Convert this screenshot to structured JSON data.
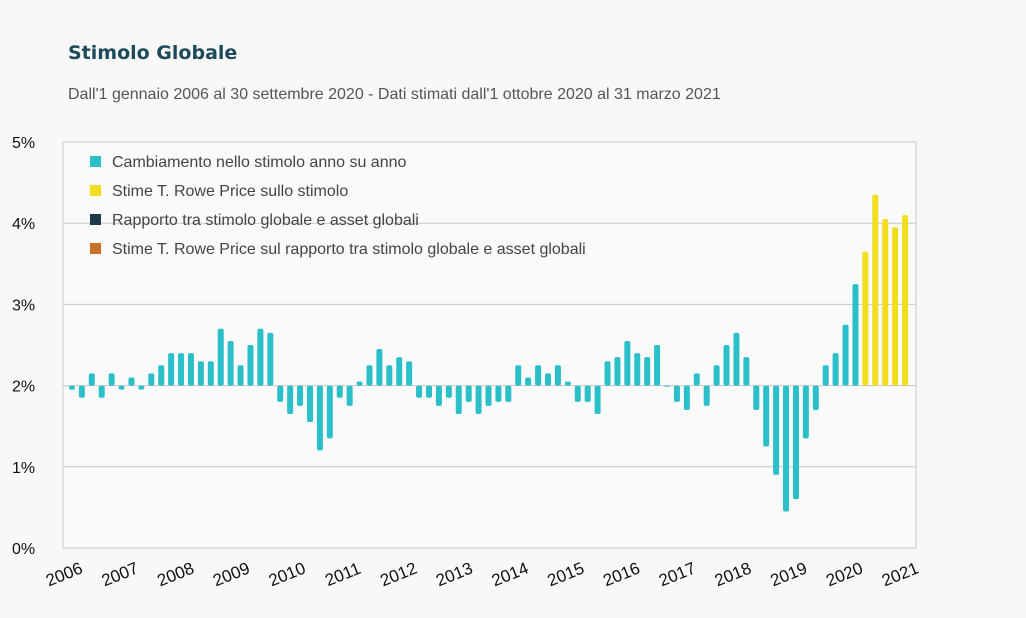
{
  "header": {
    "title": "Stimolo Globale",
    "subtitle": "Dall'1 gennaio 2006 al 30 settembre 2020 - Dati stimati dall'1 ottobre 2020 al 31 marzo 2021"
  },
  "colors": {
    "actual": "#2bbfc9",
    "estimate": "#f2de1f",
    "ratio": "#1c3a4a",
    "ratio_estimate": "#c8702a",
    "grid": "#c8c8c8"
  },
  "chart_data": {
    "type": "bar",
    "title": "Stimolo Globale",
    "xlabel": "",
    "ylabel": "",
    "ylim": [
      0,
      5
    ],
    "y_ticks": [
      "0%",
      "1%",
      "2%",
      "3%",
      "4%",
      "5%"
    ],
    "x_tick_labels": [
      "2006",
      "2007",
      "2008",
      "2009",
      "2010",
      "2011",
      "2012",
      "2013",
      "2014",
      "2015",
      "2016",
      "2017",
      "2018",
      "2019",
      "2020",
      "2021"
    ],
    "baseline": 2,
    "legend": [
      {
        "label": "Cambiamento nello stimolo anno su anno",
        "color": "#2bbfc9"
      },
      {
        "label": "Stime T. Rowe Price sullo stimolo",
        "color": "#f2de1f"
      },
      {
        "label": "Rapporto tra stimolo globale e asset globali",
        "color": "#1c3a4a"
      },
      {
        "label": "Stime T. Rowe Price sul rapporto tra stimolo globale e asset globali",
        "color": "#c8702a"
      }
    ],
    "legend_position": "top-left",
    "grid": true,
    "series": [
      {
        "name": "Cambiamento nello stimolo anno su anno",
        "values": [
          1.95,
          1.85,
          2.15,
          1.85,
          2.15,
          1.95,
          2.1,
          1.95,
          2.15,
          2.25,
          2.4,
          2.4,
          2.4,
          2.3,
          2.3,
          2.7,
          2.55,
          2.25,
          2.5,
          2.7,
          2.65,
          1.8,
          1.65,
          1.75,
          1.55,
          1.2,
          1.35,
          1.85,
          1.75,
          2.05,
          2.25,
          2.45,
          2.25,
          2.35,
          2.3,
          1.85,
          1.85,
          1.75,
          1.85,
          1.65,
          1.8,
          1.65,
          1.75,
          1.8,
          1.8,
          2.25,
          2.1,
          2.25,
          2.15,
          2.25,
          2.05,
          1.8,
          1.8,
          1.65,
          2.3,
          2.35,
          2.55,
          2.4,
          2.35,
          2.5,
          2.0,
          1.8,
          1.7,
          2.15,
          1.75,
          2.25,
          2.5,
          2.65,
          2.35,
          1.7,
          1.25,
          0.9,
          0.45,
          0.6,
          1.35,
          1.7,
          2.25,
          2.4,
          2.75,
          3.25
        ]
      },
      {
        "name": "Stime T. Rowe Price sullo stimolo",
        "values": [
          3.65,
          4.35,
          4.05,
          3.95,
          4.1
        ]
      }
    ]
  }
}
